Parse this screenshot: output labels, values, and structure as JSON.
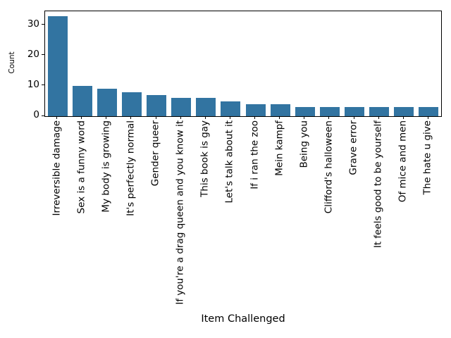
{
  "figure": {
    "background_color": "#ffffff",
    "text_color": "#000000",
    "spine_color": "#000000"
  },
  "chart_data": {
    "type": "bar",
    "title": "",
    "xlabel": "Item Challenged",
    "ylabel": "Count",
    "categories": [
      "Irreversible damage",
      "Sex is a funny word",
      "My body is growing",
      "It's perfectly normal",
      "Gender queer",
      "If you're a drag queen and you know it",
      "This book is gay",
      "Let's talk about it",
      "If i ran the zoo",
      "Mein kampf",
      "Being you",
      "Clifford's halloween",
      "Grave error",
      "It feels good to be yourself",
      "Of mice and men",
      "The hate u give"
    ],
    "values": [
      33,
      10,
      9,
      8,
      7,
      6,
      6,
      5,
      4,
      4,
      3,
      3,
      3,
      3,
      3,
      3
    ],
    "ylim": [
      0,
      34.65
    ],
    "yticks": [
      0,
      10,
      20,
      30
    ],
    "bar_color": "#3274a1",
    "bar_width_fraction": 0.8,
    "x_tick_rotation_degrees": 90,
    "grid": false,
    "legend": null
  }
}
